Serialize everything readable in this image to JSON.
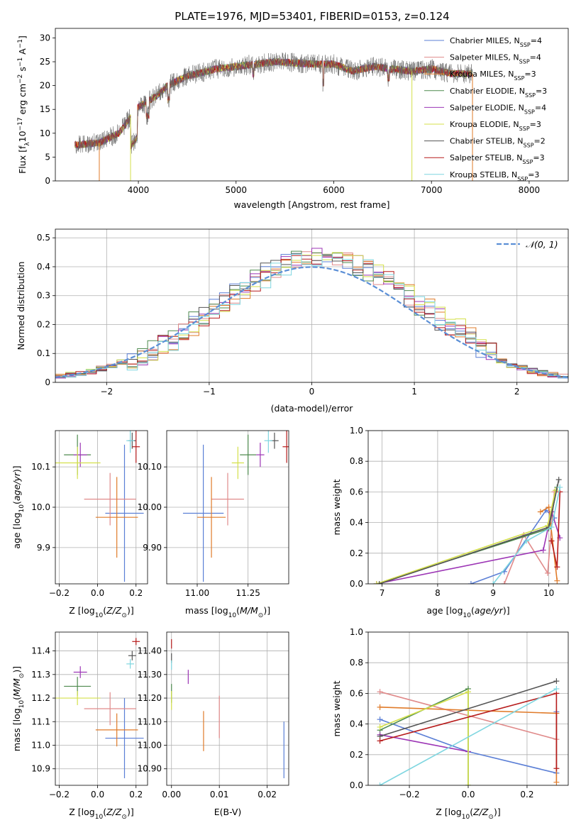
{
  "figure": {
    "title": "PLATE=1976, MJD=53401, FIBERID=0153, z=0.124"
  },
  "legend": {
    "entries": [
      {
        "name": "Chabrier MILES, N",
        "sub": "SSP",
        "suffix": "=4",
        "color": "#5b7fd6"
      },
      {
        "name": "Salpeter MILES, N",
        "sub": "SSP",
        "suffix": "=4",
        "color": "#e08a8a"
      },
      {
        "name": "Kroupa MILES, N",
        "sub": "SSP",
        "suffix": "=3",
        "color": "#e07b2a"
      },
      {
        "name": "Chabrier ELODIE, N",
        "sub": "SSP",
        "suffix": "=3",
        "color": "#4e8a4e"
      },
      {
        "name": "Salpeter ELODIE, N",
        "sub": "SSP",
        "suffix": "=4",
        "color": "#9c35b5"
      },
      {
        "name": "Kroupa ELODIE, N",
        "sub": "SSP",
        "suffix": "=3",
        "color": "#d4e04a"
      },
      {
        "name": "Chabrier STELIB, N",
        "sub": "SSP",
        "suffix": "=2",
        "color": "#555555"
      },
      {
        "name": "Salpeter STELIB, N",
        "sub": "SSP",
        "suffix": "=3",
        "color": "#b71c1c"
      },
      {
        "name": "Kroupa STELIB, N",
        "sub": "SSP",
        "suffix": "=3",
        "color": "#7fd6e0"
      }
    ],
    "normal_label": "𝒩(0, 1)",
    "normal_color": "#5b8fd6"
  },
  "chart_data": [
    {
      "id": "spectrum",
      "type": "line",
      "xlabel": "wavelength [Angstrom, rest frame]",
      "ylabel": "Flux [f_λ10^-17 erg cm^-2 s^-1 A^-1]",
      "xlim": [
        3150,
        8400
      ],
      "ylim": [
        0,
        32
      ],
      "xticks": [
        4000,
        5000,
        6000,
        7000,
        8000
      ],
      "yticks": [
        0,
        5,
        10,
        15,
        20,
        25,
        30
      ],
      "continuum": [
        [
          3350,
          7.5
        ],
        [
          3600,
          8
        ],
        [
          3800,
          10
        ],
        [
          4000,
          15.5
        ],
        [
          4200,
          18
        ],
        [
          4300,
          20
        ],
        [
          4500,
          22
        ],
        [
          4800,
          23.5
        ],
        [
          5000,
          24
        ],
        [
          5400,
          25
        ],
        [
          5800,
          24.5
        ],
        [
          6000,
          24.5
        ],
        [
          6200,
          23
        ],
        [
          6400,
          24
        ],
        [
          6600,
          23.5
        ],
        [
          6800,
          23
        ],
        [
          7000,
          23.5
        ],
        [
          7200,
          22.5
        ],
        [
          7400,
          22.5
        ]
      ],
      "dropouts": [
        [
          3600,
          "#e07b2a"
        ],
        [
          3920,
          "#d4e04a"
        ],
        [
          6800,
          "#d4e04a"
        ],
        [
          7420,
          "#e07b2a"
        ]
      ]
    },
    {
      "id": "residuals",
      "type": "histogram",
      "xlabel": "(data-model)/error",
      "ylabel": "Normed distribution",
      "xlim": [
        -2.5,
        2.5
      ],
      "ylim": [
        0,
        0.53
      ],
      "xticks": [
        -2,
        -1,
        0,
        1,
        2
      ],
      "yticks": [
        0.0,
        0.1,
        0.2,
        0.3,
        0.4,
        0.5
      ],
      "bin_width": 0.1
    },
    {
      "id": "age_vs_Z",
      "type": "errorbar",
      "xlabel": "Z [log10(Z/Z⊙)]",
      "ylabel": "age  [log10(age/yr)]",
      "xlim": [
        -0.22,
        0.26
      ],
      "ylim": [
        9.81,
        10.19
      ],
      "xticks": [
        -0.2,
        0.0,
        0.2
      ],
      "yticks": [
        9.9,
        10.0,
        10.1
      ],
      "points": [
        {
          "x": 0.14,
          "y": 9.985,
          "xerr": 0.1,
          "yerr": 0.17,
          "color": "#5b7fd6"
        },
        {
          "x": 0.065,
          "y": 10.02,
          "xerr": 0.135,
          "yerr": 0.065,
          "color": "#e08a8a"
        },
        {
          "x": 0.1,
          "y": 9.975,
          "xerr": 0.11,
          "yerr": 0.1,
          "color": "#e07b2a"
        },
        {
          "x": -0.105,
          "y": 10.13,
          "xerr": 0.07,
          "yerr": 0.05,
          "color": "#4e8a4e"
        },
        {
          "x": -0.09,
          "y": 10.13,
          "xerr": 0.035,
          "yerr": 0.03,
          "color": "#9c35b5"
        },
        {
          "x": -0.105,
          "y": 10.11,
          "xerr": 0.12,
          "yerr": 0.04,
          "color": "#d4e04a"
        },
        {
          "x": 0.18,
          "y": 10.165,
          "xerr": 0.02,
          "yerr": 0.02,
          "color": "#555555"
        },
        {
          "x": 0.2,
          "y": 10.15,
          "xerr": 0.02,
          "yerr": 0.04,
          "color": "#b71c1c"
        },
        {
          "x": 0.17,
          "y": 10.165,
          "xerr": 0.02,
          "yerr": 0.03,
          "color": "#7fd6e0"
        }
      ]
    },
    {
      "id": "age_vs_mass",
      "type": "errorbar",
      "xlabel": "mass [log10(M/M⊙)]",
      "ylabel": "",
      "xlim": [
        10.85,
        11.45
      ],
      "ylim": [
        9.81,
        10.19
      ],
      "xticks": [
        11.0,
        11.25
      ],
      "yticks": [
        9.9,
        10.0,
        10.1
      ],
      "points": [
        {
          "x": 11.03,
          "y": 9.985,
          "xerr": 0.1,
          "yerr": 0.17,
          "color": "#5b7fd6"
        },
        {
          "x": 11.15,
          "y": 10.02,
          "xerr": 0.08,
          "yerr": 0.065,
          "color": "#e08a8a"
        },
        {
          "x": 11.07,
          "y": 9.975,
          "xerr": 0.07,
          "yerr": 0.1,
          "color": "#e07b2a"
        },
        {
          "x": 11.25,
          "y": 10.13,
          "xerr": 0.04,
          "yerr": 0.05,
          "color": "#4e8a4e"
        },
        {
          "x": 11.31,
          "y": 10.13,
          "xerr": 0.02,
          "yerr": 0.03,
          "color": "#9c35b5"
        },
        {
          "x": 11.2,
          "y": 10.11,
          "xerr": 0.03,
          "yerr": 0.04,
          "color": "#d4e04a"
        },
        {
          "x": 11.38,
          "y": 10.165,
          "xerr": 0.02,
          "yerr": 0.02,
          "color": "#555555"
        },
        {
          "x": 11.44,
          "y": 10.15,
          "xerr": 0.02,
          "yerr": 0.04,
          "color": "#b71c1c"
        },
        {
          "x": 11.35,
          "y": 10.165,
          "xerr": 0.02,
          "yerr": 0.03,
          "color": "#7fd6e0"
        }
      ]
    },
    {
      "id": "weight_vs_age",
      "type": "line",
      "xlabel": "age  [log10(age/yr)]",
      "ylabel": "mass weight",
      "xlim": [
        6.75,
        10.35
      ],
      "ylim": [
        0,
        1
      ],
      "xticks": [
        7,
        8,
        9,
        10
      ],
      "yticks": [
        0.0,
        0.2,
        0.4,
        0.6,
        0.8,
        1.0
      ],
      "series": [
        {
          "color": "#5b7fd6",
          "points": [
            [
              8.6,
              0
            ],
            [
              9.2,
              0.08
            ],
            [
              9.95,
              0.48
            ],
            [
              10.1,
              0.43
            ]
          ]
        },
        {
          "color": "#e08a8a",
          "points": [
            [
              9.2,
              0
            ],
            [
              9.55,
              0.32
            ],
            [
              9.98,
              0.07
            ],
            [
              10.1,
              0.6
            ]
          ]
        },
        {
          "color": "#e07b2a",
          "points": [
            [
              9.85,
              0.47
            ],
            [
              10.0,
              0.5
            ],
            [
              10.15,
              0.02
            ]
          ]
        },
        {
          "color": "#4e8a4e",
          "points": [
            [
              6.9,
              0
            ],
            [
              10.0,
              0.36
            ],
            [
              10.15,
              0.63
            ]
          ]
        },
        {
          "color": "#9c35b5",
          "points": [
            [
              6.9,
              0
            ],
            [
              9.9,
              0.22
            ],
            [
              10.05,
              0.47
            ],
            [
              10.2,
              0.3
            ]
          ]
        },
        {
          "color": "#d4e04a",
          "points": [
            [
              6.9,
              0
            ],
            [
              9.98,
              0.38
            ],
            [
              10.12,
              0.61
            ]
          ]
        },
        {
          "color": "#555555",
          "points": [
            [
              6.95,
              0
            ],
            [
              10.0,
              0.37
            ],
            [
              10.18,
              0.68
            ]
          ]
        },
        {
          "color": "#b71c1c",
          "points": [
            [
              10.05,
              0.28
            ],
            [
              10.15,
              0.11
            ],
            [
              10.2,
              0.6
            ]
          ]
        },
        {
          "color": "#7fd6e0",
          "points": [
            [
              9.0,
              0
            ],
            [
              9.6,
              0.28
            ],
            [
              10.05,
              0.37
            ],
            [
              10.2,
              0.63
            ]
          ]
        }
      ]
    },
    {
      "id": "mass_vs_Z",
      "type": "errorbar",
      "xlabel": "Z [log10(Z/Z⊙)]",
      "ylabel": "mass [log10(M/M⊙)]",
      "xlim": [
        -0.22,
        0.26
      ],
      "ylim": [
        10.83,
        11.48
      ],
      "xticks": [
        -0.2,
        0.0,
        0.2
      ],
      "yticks": [
        10.9,
        11.0,
        11.1,
        11.2,
        11.3,
        11.4
      ],
      "points": [
        {
          "x": 0.14,
          "y": 11.03,
          "xerr": 0.1,
          "yerr": 0.17,
          "color": "#5b7fd6"
        },
        {
          "x": 0.065,
          "y": 11.155,
          "xerr": 0.135,
          "yerr": 0.07,
          "color": "#e08a8a"
        },
        {
          "x": 0.1,
          "y": 11.065,
          "xerr": 0.11,
          "yerr": 0.07,
          "color": "#e07b2a"
        },
        {
          "x": -0.105,
          "y": 11.25,
          "xerr": 0.07,
          "yerr": 0.04,
          "color": "#4e8a4e"
        },
        {
          "x": -0.09,
          "y": 11.31,
          "xerr": 0.035,
          "yerr": 0.025,
          "color": "#9c35b5"
        },
        {
          "x": -0.105,
          "y": 11.2,
          "xerr": 0.12,
          "yerr": 0.03,
          "color": "#d4e04a"
        },
        {
          "x": 0.18,
          "y": 11.38,
          "xerr": 0.02,
          "yerr": 0.02,
          "color": "#555555"
        },
        {
          "x": 0.2,
          "y": 11.44,
          "xerr": 0.02,
          "yerr": 0.015,
          "color": "#b71c1c"
        },
        {
          "x": 0.17,
          "y": 11.345,
          "xerr": 0.02,
          "yerr": 0.02,
          "color": "#7fd6e0"
        }
      ]
    },
    {
      "id": "mass_vs_ebv",
      "type": "errorbar",
      "xlabel": "E(B-V)",
      "ylabel": "",
      "xlim": [
        -0.001,
        0.0245
      ],
      "ylim": [
        10.83,
        11.48
      ],
      "xticks": [
        0.0,
        0.01,
        0.02
      ],
      "yticks": [
        10.9,
        11.0,
        11.1,
        11.2,
        11.3,
        11.4
      ],
      "points": [
        {
          "x": 0.0235,
          "y": 10.98,
          "xerr": 0,
          "yerr": 0.12,
          "color": "#5b7fd6"
        },
        {
          "x": 0.01,
          "y": 11.12,
          "xerr": 0,
          "yerr": 0.09,
          "color": "#e08a8a"
        },
        {
          "x": 0.0067,
          "y": 11.06,
          "xerr": 0,
          "yerr": 0.085,
          "color": "#e07b2a"
        },
        {
          "x": 0.0,
          "y": 11.22,
          "xerr": 0,
          "yerr": 0.04,
          "color": "#4e8a4e"
        },
        {
          "x": 0.0035,
          "y": 11.29,
          "xerr": 0,
          "yerr": 0.03,
          "color": "#9c35b5"
        },
        {
          "x": 0.0,
          "y": 11.19,
          "xerr": 0,
          "yerr": 0.04,
          "color": "#d4e04a"
        },
        {
          "x": 0.0,
          "y": 11.37,
          "xerr": 0,
          "yerr": 0.02,
          "color": "#555555"
        },
        {
          "x": 0.0,
          "y": 11.43,
          "xerr": 0,
          "yerr": 0.02,
          "color": "#b71c1c"
        },
        {
          "x": 0.0,
          "y": 11.34,
          "xerr": 0,
          "yerr": 0.02,
          "color": "#7fd6e0"
        }
      ]
    },
    {
      "id": "weight_vs_Z",
      "type": "line",
      "xlabel": "Z [log10(Z/Z⊙)]",
      "ylabel": "mass weight",
      "xlim": [
        -0.34,
        0.34
      ],
      "ylim": [
        0,
        1
      ],
      "xticks": [
        -0.2,
        0.0,
        0.2
      ],
      "yticks": [
        0.0,
        0.2,
        0.4,
        0.6,
        0.8,
        1.0
      ],
      "series": [
        {
          "color": "#5b7fd6",
          "points": [
            [
              -0.3,
              0.43
            ],
            [
              0.0,
              0.22
            ],
            [
              0.3,
              0.08
            ],
            [
              0.3,
              0.48
            ]
          ]
        },
        {
          "color": "#e08a8a",
          "points": [
            [
              -0.3,
              0.61
            ],
            [
              0.3,
              0.3
            ]
          ]
        },
        {
          "color": "#e07b2a",
          "points": [
            [
              -0.3,
              0.51
            ],
            [
              0.3,
              0.47
            ],
            [
              0.3,
              0.02
            ]
          ]
        },
        {
          "color": "#4e8a4e",
          "points": [
            [
              -0.3,
              0.36
            ],
            [
              0.0,
              0.63
            ],
            [
              0.0,
              0.0
            ]
          ]
        },
        {
          "color": "#9c35b5",
          "points": [
            [
              -0.3,
              0.33
            ],
            [
              0.0,
              0.22
            ]
          ]
        },
        {
          "color": "#d4e04a",
          "points": [
            [
              -0.3,
              0.38
            ],
            [
              0.0,
              0.61
            ],
            [
              0.0,
              0.0
            ]
          ]
        },
        {
          "color": "#555555",
          "points": [
            [
              -0.3,
              0.32
            ],
            [
              0.3,
              0.68
            ]
          ]
        },
        {
          "color": "#b71c1c",
          "points": [
            [
              -0.3,
              0.29
            ],
            [
              0.3,
              0.6
            ],
            [
              0.3,
              0.11
            ]
          ]
        },
        {
          "color": "#7fd6e0",
          "points": [
            [
              -0.3,
              0.0
            ],
            [
              0.3,
              0.63
            ]
          ]
        }
      ]
    }
  ]
}
